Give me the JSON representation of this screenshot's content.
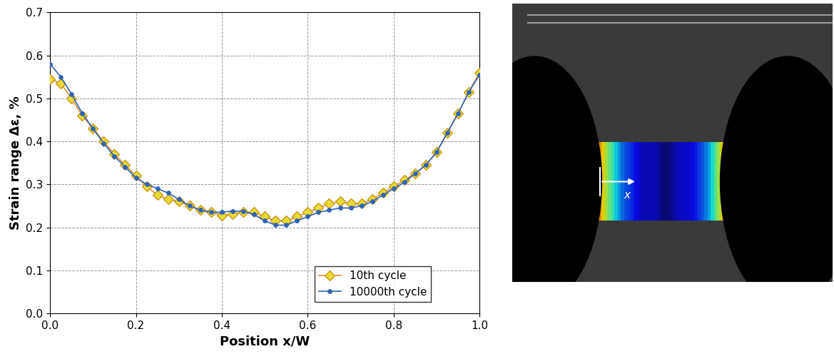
{
  "chart_data": {
    "type": "line",
    "x_label": "Position x/W",
    "y_label": "Strain range Δε, %",
    "x": [
      0.0,
      0.025,
      0.05,
      0.075,
      0.1,
      0.125,
      0.15,
      0.175,
      0.2,
      0.225,
      0.25,
      0.275,
      0.3,
      0.325,
      0.35,
      0.375,
      0.4,
      0.425,
      0.45,
      0.475,
      0.5,
      0.525,
      0.55,
      0.575,
      0.6,
      0.625,
      0.65,
      0.675,
      0.7,
      0.725,
      0.75,
      0.775,
      0.8,
      0.825,
      0.85,
      0.875,
      0.9,
      0.925,
      0.95,
      0.975,
      1.0
    ],
    "series": [
      {
        "name": "10th cycle",
        "color": "#e8d838",
        "marker": "diamond",
        "line_style": "solid",
        "values": [
          0.545,
          0.535,
          0.5,
          0.46,
          0.43,
          0.4,
          0.37,
          0.345,
          0.32,
          0.295,
          0.275,
          0.265,
          0.26,
          0.25,
          0.24,
          0.235,
          0.228,
          0.23,
          0.235,
          0.235,
          0.225,
          0.215,
          0.215,
          0.225,
          0.235,
          0.245,
          0.255,
          0.26,
          0.255,
          0.255,
          0.265,
          0.28,
          0.295,
          0.31,
          0.325,
          0.345,
          0.375,
          0.42,
          0.465,
          0.515,
          0.56
        ]
      },
      {
        "name": "10000th cycle",
        "color": "#2f63b4",
        "marker": "circle",
        "line_style": "solid",
        "values": [
          0.58,
          0.55,
          0.51,
          0.465,
          0.43,
          0.395,
          0.365,
          0.34,
          0.315,
          0.3,
          0.29,
          0.28,
          0.265,
          0.25,
          0.24,
          0.235,
          0.235,
          0.238,
          0.237,
          0.23,
          0.215,
          0.205,
          0.205,
          0.215,
          0.225,
          0.235,
          0.24,
          0.245,
          0.245,
          0.25,
          0.26,
          0.275,
          0.29,
          0.305,
          0.325,
          0.345,
          0.375,
          0.42,
          0.465,
          0.515,
          0.555
        ]
      }
    ],
    "xlim": [
      0.0,
      1.0
    ],
    "xticks": [
      {
        "value": 0.0,
        "label": "0.0"
      },
      {
        "value": 0.2,
        "label": "0.2"
      },
      {
        "value": 0.4,
        "label": "0.4"
      },
      {
        "value": 0.6,
        "label": "0.6"
      },
      {
        "value": 0.8,
        "label": "0.8"
      },
      {
        "value": 1.0,
        "label": "1.0"
      }
    ],
    "ylim": [
      0.0,
      0.7
    ],
    "yticks": [
      {
        "value": 0.0,
        "label": "0.0"
      },
      0.1,
      0.2,
      0.3,
      0.4,
      0.5,
      0.6,
      0.7
    ],
    "grid": true,
    "legend": "lower right"
  },
  "photo": {
    "arrow_label": "x"
  }
}
